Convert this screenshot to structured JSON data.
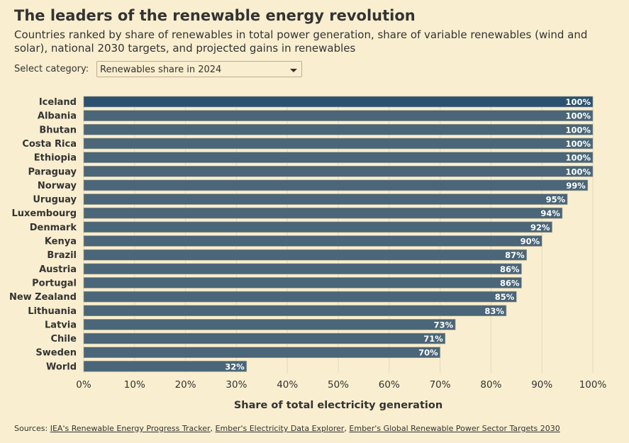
{
  "title": "The leaders of the renewable energy revolution",
  "subtitle": "Countries ranked by share of renewables in total power generation, share of variable renewables (wind and solar), national 2030 targets, and projected gains in renewables",
  "select": {
    "label": "Select category:",
    "value": "Renewables share in 2024"
  },
  "sources": {
    "prefix": "Sources:",
    "links": [
      "IEA's Renewable Energy Progress Tracker",
      "Ember's Electricity Data Explorer",
      "Ember's Global Renewable Power Sector Targets 2030"
    ]
  },
  "colors": {
    "background": "#f9eecf",
    "bar": "#4a6678",
    "highlight": "#2a5270"
  },
  "chart_data": {
    "type": "bar",
    "orientation": "horizontal",
    "categories": [
      "Iceland",
      "Albania",
      "Bhutan",
      "Costa Rica",
      "Ethiopia",
      "Paraguay",
      "Norway",
      "Uruguay",
      "Luxembourg",
      "Denmark",
      "Kenya",
      "Brazil",
      "Austria",
      "Portugal",
      "New Zealand",
      "Lithuania",
      "Latvia",
      "Chile",
      "Sweden",
      "World"
    ],
    "values": [
      100,
      100,
      100,
      100,
      100,
      100,
      99,
      95,
      94,
      92,
      90,
      87,
      86,
      86,
      85,
      83,
      73,
      71,
      70,
      32
    ],
    "data_labels": [
      "100%",
      "100%",
      "100%",
      "100%",
      "100%",
      "100%",
      "99%",
      "95%",
      "94%",
      "92%",
      "90%",
      "87%",
      "86%",
      "86%",
      "85%",
      "83%",
      "73%",
      "71%",
      "70%",
      "32%"
    ],
    "xlabel": "Share of total electricity generation",
    "xlim": [
      0,
      100
    ],
    "xticks": [
      "0%",
      "10%",
      "20%",
      "30%",
      "40%",
      "50%",
      "60%",
      "70%",
      "80%",
      "90%",
      "100%"
    ],
    "grid": true
  }
}
